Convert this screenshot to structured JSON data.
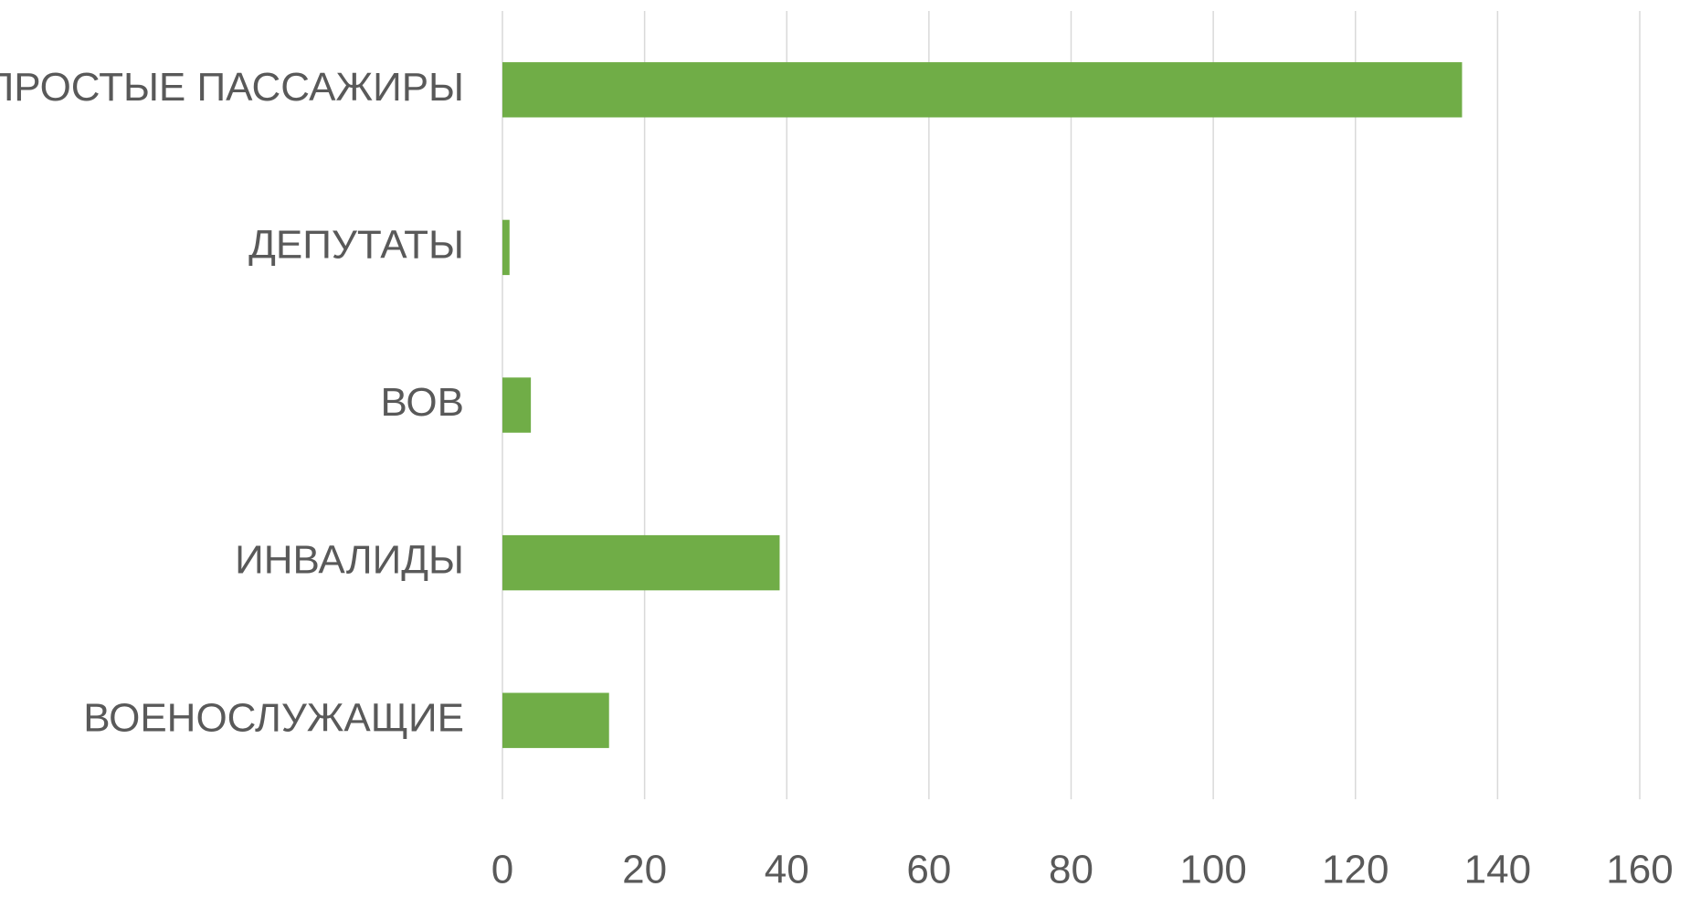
{
  "chart_data": {
    "type": "bar",
    "orientation": "horizontal",
    "categories": [
      "ПРОСТЫЕ ПАССАЖИРЫ",
      "ДЕПУТАТЫ",
      "ВОВ",
      "ИНВАЛИДЫ",
      "ВОЕНОСЛУЖАЩИЕ"
    ],
    "values": [
      135,
      1,
      4,
      39,
      15
    ],
    "color": "#70ad47",
    "xlim": [
      0,
      160
    ],
    "xticks": [
      0,
      20,
      40,
      60,
      80,
      100,
      120,
      140,
      160
    ],
    "grid": true
  }
}
